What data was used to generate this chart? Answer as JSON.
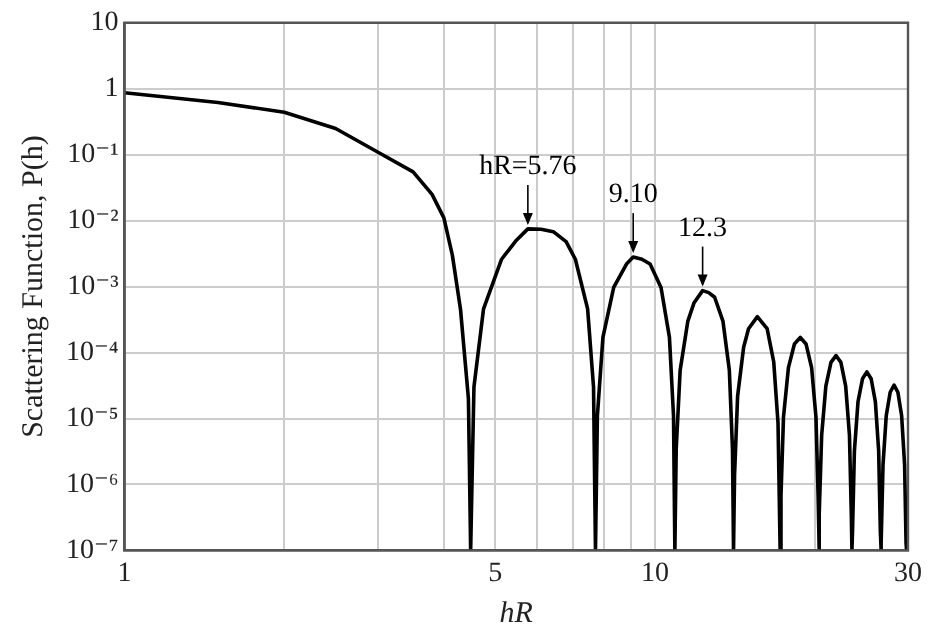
{
  "chart_data": {
    "type": "line",
    "xlabel": "hR",
    "ylabel": "Scattering Function, P(h)",
    "log": "xy",
    "grid": true,
    "legend": false,
    "marker": "none",
    "line_style": "solid",
    "xlim": [
      1,
      30
    ],
    "xticks": [
      1,
      {
        "value": 2,
        "label": null
      },
      {
        "value": 3,
        "label": null
      },
      {
        "value": 4,
        "label": null
      },
      5,
      {
        "value": 6,
        "label": null
      },
      {
        "value": 7,
        "label": null
      },
      {
        "value": 8,
        "label": null
      },
      {
        "value": 9,
        "label": null
      },
      10,
      {
        "value": 20,
        "label": null
      },
      30
    ],
    "ylim": [
      1e-07,
      10
    ],
    "yticks": [
      {
        "value": 1e-07,
        "label": "10⁻⁷"
      },
      {
        "value": 1e-06,
        "label": "10⁻⁶"
      },
      {
        "value": 1e-05,
        "label": "10⁻⁵"
      },
      {
        "value": 0.0001,
        "label": "10⁻⁴"
      },
      {
        "value": 0.001,
        "label": "10⁻³"
      },
      {
        "value": 0.01,
        "label": "10⁻²"
      },
      {
        "value": 0.1,
        "label": "10⁻¹"
      },
      1,
      10
    ],
    "series": [
      {
        "color": "#000000",
        "x": [
          1,
          1.5,
          2,
          2.5,
          3,
          3.5,
          3.8,
          4,
          4.15,
          4.3,
          4.45,
          4.493,
          4.558,
          4.752,
          5.139,
          5.463,
          5.76,
          6.1,
          6.432,
          6.8,
          7.079,
          7.466,
          7.66,
          7.725,
          7.789,
          7.979,
          8.361,
          8.838,
          9.1,
          9.45,
          9.791,
          10.268,
          10.65,
          10.84,
          10.904,
          10.967,
          11.157,
          11.536,
          11.853,
          12.3,
          12.63,
          12.959,
          13.434,
          13.813,
          14.003,
          14.066,
          14.129,
          14.318,
          14.697,
          15.013,
          15.6,
          16.275,
          16.748,
          17.063,
          17.221,
          17.284,
          17.473,
          17.851,
          18.323,
          18.796,
          19.268,
          19.741,
          20.119,
          20.308,
          20.371,
          20.434,
          20.623,
          21.001,
          21.473,
          21.945,
          22.417,
          22.889,
          23.267,
          23.456,
          23.519,
          23.582,
          23.771,
          24.148,
          24.621,
          25.093,
          25.565,
          26.037,
          26.414,
          26.603,
          26.666,
          26.729,
          26.918,
          27.295,
          27.767,
          28.239,
          28.711,
          29.183,
          29.56,
          29.749,
          29.812
        ],
        "values": [
          0.87,
          0.62,
          0.44,
          0.25,
          0.11,
          0.055,
          0.025,
          0.011,
          0.003,
          0.00045,
          2e-05,
          1e-07,
          3e-05,
          0.00046,
          0.0026,
          0.0049,
          0.0075,
          0.0074,
          0.0068,
          0.0048,
          0.0026,
          0.00046,
          3e-05,
          1e-07,
          1.1e-05,
          0.00017,
          0.00097,
          0.0022,
          0.0028,
          0.0026,
          0.0022,
          0.00097,
          0.00017,
          1.1e-05,
          1e-07,
          3.4e-06,
          5.4e-05,
          0.0003,
          0.00057,
          0.00087,
          0.00081,
          0.00069,
          0.0003,
          5.4e-05,
          3.4e-06,
          1e-07,
          1.4e-06,
          2.2e-05,
          0.00012,
          0.00023,
          0.00035,
          0.00023,
          7.2e-05,
          8.6e-06,
          1e-07,
          6.7e-07,
          1.05e-05,
          5.9e-05,
          0.000135,
          0.00017,
          0.000135,
          5.9e-05,
          1.05e-05,
          6.7e-07,
          1e-07,
          3.5e-07,
          5.6e-06,
          3.1e-05,
          7.1e-05,
          9e-05,
          7.1e-05,
          3.1e-05,
          5.6e-06,
          3.5e-07,
          1e-07,
          2e-07,
          3.2e-06,
          1.8e-05,
          4e-05,
          5.1e-05,
          4e-05,
          1.8e-05,
          3.2e-06,
          2e-07,
          1e-07,
          1.3e-07,
          2e-06,
          1.1e-05,
          2.5e-05,
          3.2e-05,
          2.5e-05,
          1.1e-05,
          2e-06,
          1.3e-07,
          1e-07
        ]
      }
    ],
    "annotations": [
      {
        "text": "hR=5.76",
        "x": 5.76,
        "y": 0.0075
      },
      {
        "text": "9.10",
        "x": 9.1,
        "y": 0.0028
      },
      {
        "text": "12.3",
        "x": 12.3,
        "y": 0.00087
      }
    ]
  }
}
